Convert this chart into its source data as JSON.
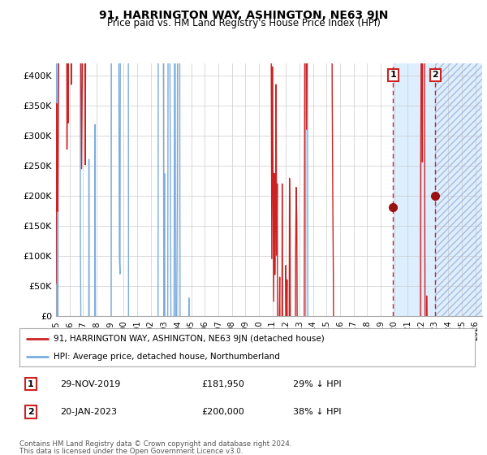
{
  "title": "91, HARRINGTON WAY, ASHINGTON, NE63 9JN",
  "subtitle": "Price paid vs. HM Land Registry's House Price Index (HPI)",
  "hpi_label": "HPI: Average price, detached house, Northumberland",
  "price_label": "91, HARRINGTON WAY, ASHINGTON, NE63 9JN (detached house)",
  "hpi_color": "#7aace0",
  "price_color": "#cc2222",
  "marker_color": "#991111",
  "box_edge_color": "#cc2222",
  "vline_color": "#cc2222",
  "shade_color": "#ddeeff",
  "hatch_color": "#aabbdd",
  "event1_x": 2019.91,
  "event1_y": 181950,
  "event1_label": "1",
  "event1_date": "29-NOV-2019",
  "event1_price": "£181,950",
  "event1_note": "29% ↓ HPI",
  "event2_x": 2023.05,
  "event2_y": 200000,
  "event2_label": "2",
  "event2_date": "20-JAN-2023",
  "event2_price": "£200,000",
  "event2_note": "38% ↓ HPI",
  "ylim": [
    0,
    420000
  ],
  "xlim": [
    1995.0,
    2026.5
  ],
  "yticks": [
    0,
    50000,
    100000,
    150000,
    200000,
    250000,
    300000,
    350000,
    400000
  ],
  "ytick_labels": [
    "£0",
    "£50K",
    "£100K",
    "£150K",
    "£200K",
    "£250K",
    "£300K",
    "£350K",
    "£400K"
  ],
  "footer1": "Contains HM Land Registry data © Crown copyright and database right 2024.",
  "footer2": "This data is licensed under the Open Government Licence v3.0.",
  "bg_color": "#ffffff",
  "grid_color": "#cccccc"
}
